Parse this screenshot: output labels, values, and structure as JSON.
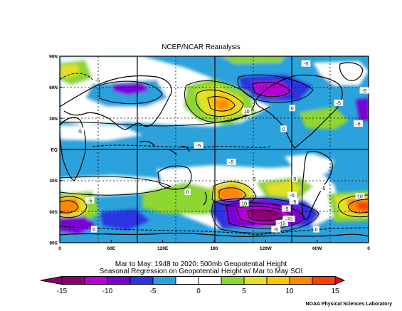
{
  "title": "NCEP/NCAR Reanalysis",
  "caption": {
    "line1": "Mar to May: 1948 to 2020: 500mb Geopotential Height",
    "line2": "Seasonal Regression on Geopotential Height  w/ Mar to May SOI"
  },
  "credit": "NOAA Physical Sciences Laboratory",
  "chart_data": {
    "type": "heatmap",
    "title": "NCEP/NCAR Reanalysis",
    "x_ticks": [
      "0",
      "60E",
      "120E",
      "180",
      "120W",
      "60W",
      "0"
    ],
    "y_ticks": [
      "90N",
      "60N",
      "30N",
      "EQ",
      "30S",
      "60S",
      "90S"
    ],
    "x_range": [
      0,
      360
    ],
    "y_range": [
      -90,
      90
    ],
    "grid": true,
    "colorbar": {
      "levels": [
        -15,
        -12.5,
        -10,
        -7.5,
        -5,
        -2.5,
        0,
        2.5,
        5,
        7.5,
        10,
        12.5,
        15
      ],
      "tick_labels": [
        "-15",
        "-10",
        "-5",
        "0",
        "5",
        "10",
        "15"
      ],
      "colors": [
        "#8c006e",
        "#b800d2",
        "#7a00d6",
        "#2a35e0",
        "#2ba2dc",
        "#ffffff",
        "#ffffff",
        "#8ed631",
        "#e0e028",
        "#ffc300",
        "#ff8800",
        "#ff3e00"
      ],
      "under_color": "#8c006e",
      "over_color": "#e2001a"
    },
    "contour_labels": [
      {
        "text": "-5",
        "lon": 287,
        "lat": 83
      },
      {
        "text": "-5",
        "lon": 44,
        "lat": 67
      },
      {
        "text": "-5",
        "lon": 355,
        "lat": 57
      },
      {
        "text": "-5",
        "lon": 325,
        "lat": 45
      },
      {
        "text": "0",
        "lon": 271,
        "lat": 40
      },
      {
        "text": "10",
        "lon": 218,
        "lat": 37
      },
      {
        "text": "-5",
        "lon": 23,
        "lat": 18
      },
      {
        "text": "0",
        "lon": 261,
        "lat": 20
      },
      {
        "text": "-5",
        "lon": 348,
        "lat": 25
      },
      {
        "text": "-5",
        "lon": 162,
        "lat": 4
      },
      {
        "text": "-5",
        "lon": 200,
        "lat": -12
      },
      {
        "text": "0",
        "lon": 274,
        "lat": -28
      },
      {
        "text": "-5",
        "lon": 226,
        "lat": -28
      },
      {
        "text": "0",
        "lon": 149,
        "lat": -41
      },
      {
        "text": "-5",
        "lon": 307,
        "lat": -37
      },
      {
        "text": "10",
        "lon": 350,
        "lat": -45
      },
      {
        "text": "-5",
        "lon": 35,
        "lat": -49
      },
      {
        "text": "10",
        "lon": 215,
        "lat": -52
      },
      {
        "text": "-5",
        "lon": 271,
        "lat": -44
      },
      {
        "text": "-5",
        "lon": 273,
        "lat": -50
      },
      {
        "text": "-5",
        "lon": 264,
        "lat": -57
      },
      {
        "text": "-20",
        "lon": 267,
        "lat": -67
      },
      {
        "text": "-15",
        "lon": 259,
        "lat": -71
      },
      {
        "text": "-5",
        "lon": 252,
        "lat": -77
      },
      {
        "text": "0",
        "lon": 40,
        "lat": -77
      },
      {
        "text": "0",
        "lon": 299,
        "lat": -77
      }
    ]
  }
}
